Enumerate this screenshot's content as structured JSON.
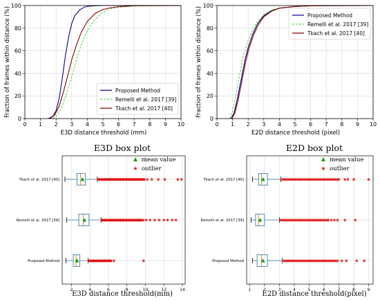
{
  "chart_data": [
    {
      "type": "line",
      "xlabel": "E3D distance threshold (mm)",
      "ylabel": "Fraction of frames within distance (%)",
      "xlim": [
        0,
        10
      ],
      "ylim": [
        0,
        100
      ],
      "xticks": [
        0,
        1,
        2,
        3,
        4,
        5,
        6,
        7,
        8,
        9,
        10
      ],
      "yticks": [
        0,
        20,
        40,
        60,
        80,
        100
      ],
      "grid": true,
      "legend_position": "lower-right",
      "series": [
        {
          "name": "Proposed Method",
          "color": "#00008b",
          "dash": "solid",
          "x": [
            1.5,
            1.8,
            2.0,
            2.2,
            2.4,
            2.6,
            2.8,
            3.0,
            3.2,
            3.5,
            3.8,
            4.0,
            4.5,
            5.0,
            10.0
          ],
          "y": [
            0,
            2,
            7,
            18,
            36,
            56,
            72,
            84,
            91,
            96,
            98.5,
            99.3,
            99.8,
            100,
            100
          ]
        },
        {
          "name": "Remelli et al. 2017 [39]",
          "color": "#55dd44",
          "dash": "dashed",
          "x": [
            1.8,
            2.0,
            2.3,
            2.6,
            3.0,
            3.3,
            3.6,
            4.0,
            4.5,
            5.0,
            5.5,
            6.0,
            7.0,
            8.0,
            10.0
          ],
          "y": [
            0,
            2,
            8,
            19,
            37,
            52,
            65,
            78,
            88,
            94,
            97,
            98.5,
            99.5,
            99.9,
            100
          ]
        },
        {
          "name": "Tkach et al. 2017 [40]",
          "color": "#8b0000",
          "dash": "solid",
          "x": [
            1.6,
            1.9,
            2.2,
            2.5,
            2.8,
            3.0,
            3.3,
            3.6,
            4.0,
            4.5,
            5.0,
            5.5,
            6.0,
            7.0,
            10.0
          ],
          "y": [
            0,
            3,
            11,
            25,
            41,
            52,
            65,
            76,
            86,
            93,
            96.5,
            98,
            99,
            99.8,
            100
          ]
        }
      ]
    },
    {
      "type": "line",
      "xlabel": "E2D distance threshold (pixel)",
      "ylabel": "Fraction of frames within distance (%)",
      "xlim": [
        0,
        10
      ],
      "ylim": [
        0,
        100
      ],
      "xticks": [
        0,
        1,
        2,
        3,
        4,
        5,
        6,
        7,
        8,
        9,
        10
      ],
      "yticks": [
        0,
        20,
        40,
        60,
        80,
        100
      ],
      "grid": true,
      "legend_position": "upper-right",
      "series": [
        {
          "name": "Proposed Method",
          "color": "#00008b",
          "dash": "solid",
          "x": [
            0.9,
            1.1,
            1.3,
            1.5,
            1.8,
            2.0,
            2.3,
            2.6,
            3.0,
            3.5,
            4.0,
            5.0,
            6.0,
            7.0,
            10.0
          ],
          "y": [
            0,
            5,
            17,
            31,
            52,
            63,
            75,
            84,
            91,
            95.5,
            97.8,
            99.2,
            99.7,
            99.9,
            100
          ]
        },
        {
          "name": "Remelli et al. 2017 [39]",
          "color": "#55dd44",
          "dash": "dashed",
          "x": [
            0.8,
            1.0,
            1.2,
            1.4,
            1.7,
            2.0,
            2.3,
            2.6,
            3.0,
            3.5,
            4.0,
            5.0,
            6.0,
            7.0,
            10.0
          ],
          "y": [
            0,
            6,
            20,
            35,
            56,
            69,
            79,
            86,
            92,
            96,
            97.8,
            99.2,
            99.7,
            99.9,
            100
          ]
        },
        {
          "name": "Tkach et al. 2017 [40]",
          "color": "#8b0000",
          "dash": "solid",
          "x": [
            0.95,
            1.15,
            1.35,
            1.55,
            1.85,
            2.05,
            2.35,
            2.65,
            3.0,
            3.5,
            4.0,
            5.0,
            6.0,
            7.0,
            10.0
          ],
          "y": [
            0,
            5,
            16,
            30,
            51,
            62,
            74,
            83,
            90,
            95,
            97.6,
            99.1,
            99.7,
            99.9,
            100
          ]
        }
      ]
    },
    {
      "type": "box",
      "title": "E3D box plot",
      "xlabel": "E3D distance threshold(mm)",
      "xlim": [
        1,
        14.3
      ],
      "xticks": [
        2,
        4,
        6,
        8,
        10,
        12,
        14
      ],
      "grid": true,
      "legend_position": "top-right",
      "legend": {
        "mean": "mean value",
        "outlier": "outlier"
      },
      "categories": [
        "Tkach et al. 2017 [40]",
        "Remelli et al. 2017 [39]",
        "Proposed Method"
      ],
      "boxes": [
        {
          "whisker_low": 1.3,
          "q1": 2.6,
          "median": 3.0,
          "q3": 3.5,
          "whisker_high": 4.8,
          "mean": 3.2,
          "outliers": [
            4.9,
            5.0,
            5.1,
            5.2,
            5.3,
            5.4,
            5.5,
            5.6,
            5.7,
            5.8,
            5.9,
            6.0,
            6.1,
            6.2,
            6.3,
            6.4,
            6.5,
            6.6,
            6.7,
            6.8,
            6.9,
            7.0,
            7.1,
            7.2,
            7.3,
            7.4,
            7.5,
            7.6,
            7.7,
            7.8,
            7.9,
            8.0,
            8.1,
            8.2,
            8.3,
            8.4,
            8.5,
            8.6,
            8.7,
            8.8,
            8.9,
            9.0,
            9.1,
            9.2,
            9.3,
            9.4,
            9.5,
            9.6,
            9.7,
            9.8,
            9.9,
            10.2,
            10.7,
            11.4,
            12.1,
            13.5,
            13.9
          ]
        },
        {
          "whisker_low": 1.5,
          "q1": 2.8,
          "median": 3.3,
          "q3": 3.9,
          "whisker_high": 5.2,
          "mean": 3.4,
          "outliers": [
            5.3,
            5.4,
            5.5,
            5.6,
            5.7,
            5.8,
            5.9,
            6.0,
            6.1,
            6.2,
            6.3,
            6.4,
            6.5,
            6.6,
            6.7,
            6.8,
            6.9,
            7.0,
            7.1,
            7.2,
            7.3,
            7.4,
            7.5,
            7.6,
            7.7,
            7.8,
            7.9,
            8.0,
            8.1,
            8.2,
            8.3,
            8.4,
            8.5,
            8.6,
            8.7,
            8.8,
            8.9,
            9.0,
            9.1,
            9.2,
            9.3,
            9.4,
            9.5,
            9.6,
            9.8,
            10.1,
            10.5,
            11.0,
            11.5,
            12.0,
            12.4,
            12.9,
            13.3
          ]
        },
        {
          "whisker_low": 1.4,
          "q1": 2.2,
          "median": 2.5,
          "q3": 2.9,
          "whisker_high": 3.8,
          "mean": 2.6,
          "outliers": [
            3.9,
            4.0,
            4.1,
            4.2,
            4.3,
            4.4,
            4.5,
            4.6,
            4.7,
            4.8,
            4.9,
            5.0,
            5.1,
            5.2,
            5.3,
            5.4,
            5.5,
            5.6,
            5.7,
            5.8,
            5.9,
            6.0,
            6.1,
            6.2,
            6.3,
            6.6,
            9.8
          ]
        }
      ]
    },
    {
      "type": "box",
      "title": "E2D box plot",
      "xlabel": "E2D distance threshold(pixel)",
      "xlim": [
        0.8,
        9.3
      ],
      "xticks": [
        1,
        2,
        3,
        4,
        5,
        6,
        7,
        8,
        9
      ],
      "grid": true,
      "legend_position": "top-right",
      "legend": {
        "mean": "mean value",
        "outlier": "outlier"
      },
      "categories": [
        "Tkach et al. 2017 [40]",
        "Remelli et al. 2017 [39]",
        "Proposed Method"
      ],
      "boxes": [
        {
          "whisker_low": 1.2,
          "q1": 1.6,
          "median": 1.8,
          "q3": 2.2,
          "whisker_high": 3.1,
          "mean": 1.9,
          "outliers": [
            3.2,
            3.3,
            3.4,
            3.5,
            3.6,
            3.7,
            3.8,
            3.9,
            4.0,
            4.1,
            4.2,
            4.3,
            4.4,
            4.5,
            4.6,
            4.7,
            4.8,
            4.9,
            5.0,
            5.1,
            5.2,
            5.3,
            5.4,
            5.5,
            5.6,
            5.7,
            5.8,
            5.9,
            6.0,
            6.1,
            6.2,
            6.3,
            6.4,
            6.5,
            6.6,
            6.7,
            6.8,
            6.9,
            7.0,
            7.4,
            7.6,
            8.0,
            9.0
          ]
        },
        {
          "whisker_low": 1.1,
          "q1": 1.4,
          "median": 1.6,
          "q3": 2.0,
          "whisker_high": 3.0,
          "mean": 1.7,
          "outliers": [
            3.1,
            3.2,
            3.3,
            3.4,
            3.5,
            3.6,
            3.7,
            3.8,
            3.9,
            4.0,
            4.1,
            4.2,
            4.3,
            4.4,
            4.5,
            4.6,
            4.7,
            4.8,
            4.9,
            5.0,
            5.1,
            5.2,
            5.3,
            5.4,
            5.5,
            5.6,
            5.7,
            5.8,
            5.9,
            6.0,
            6.1,
            6.2,
            6.3,
            6.5,
            6.7,
            6.9,
            7.4,
            8.1
          ]
        },
        {
          "whisker_low": 1.2,
          "q1": 1.5,
          "median": 1.8,
          "q3": 2.2,
          "whisker_high": 3.2,
          "mean": 1.9,
          "outliers": [
            3.3,
            3.4,
            3.5,
            3.6,
            3.7,
            3.8,
            3.9,
            4.0,
            4.1,
            4.2,
            4.3,
            4.4,
            4.5,
            4.6,
            4.7,
            4.8,
            4.9,
            5.0,
            5.1,
            5.2,
            5.3,
            5.4,
            5.5,
            5.6,
            5.7,
            5.8,
            5.9,
            6.0,
            6.1,
            6.2,
            6.3,
            6.4,
            6.5,
            6.6,
            6.7,
            6.8,
            6.9,
            7.2,
            7.5,
            8.2,
            8.7
          ]
        }
      ]
    }
  ]
}
